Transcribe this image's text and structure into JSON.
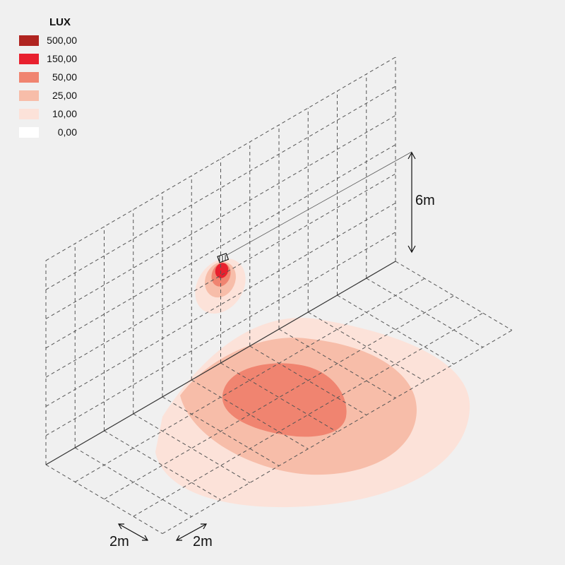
{
  "legend": {
    "title": "LUX",
    "items": [
      {
        "label": "500,00",
        "color": "#b02420"
      },
      {
        "label": "150,00",
        "color": "#e8202e"
      },
      {
        "label": "50,00",
        "color": "#f08470"
      },
      {
        "label": "25,00",
        "color": "#f7bda9"
      },
      {
        "label": "10,00",
        "color": "#fce2d9"
      },
      {
        "label": "0,00",
        "color": "#ffffff"
      }
    ]
  },
  "dimensions": {
    "height": "6m",
    "grid_x": "2m",
    "grid_y": "2m"
  }
}
